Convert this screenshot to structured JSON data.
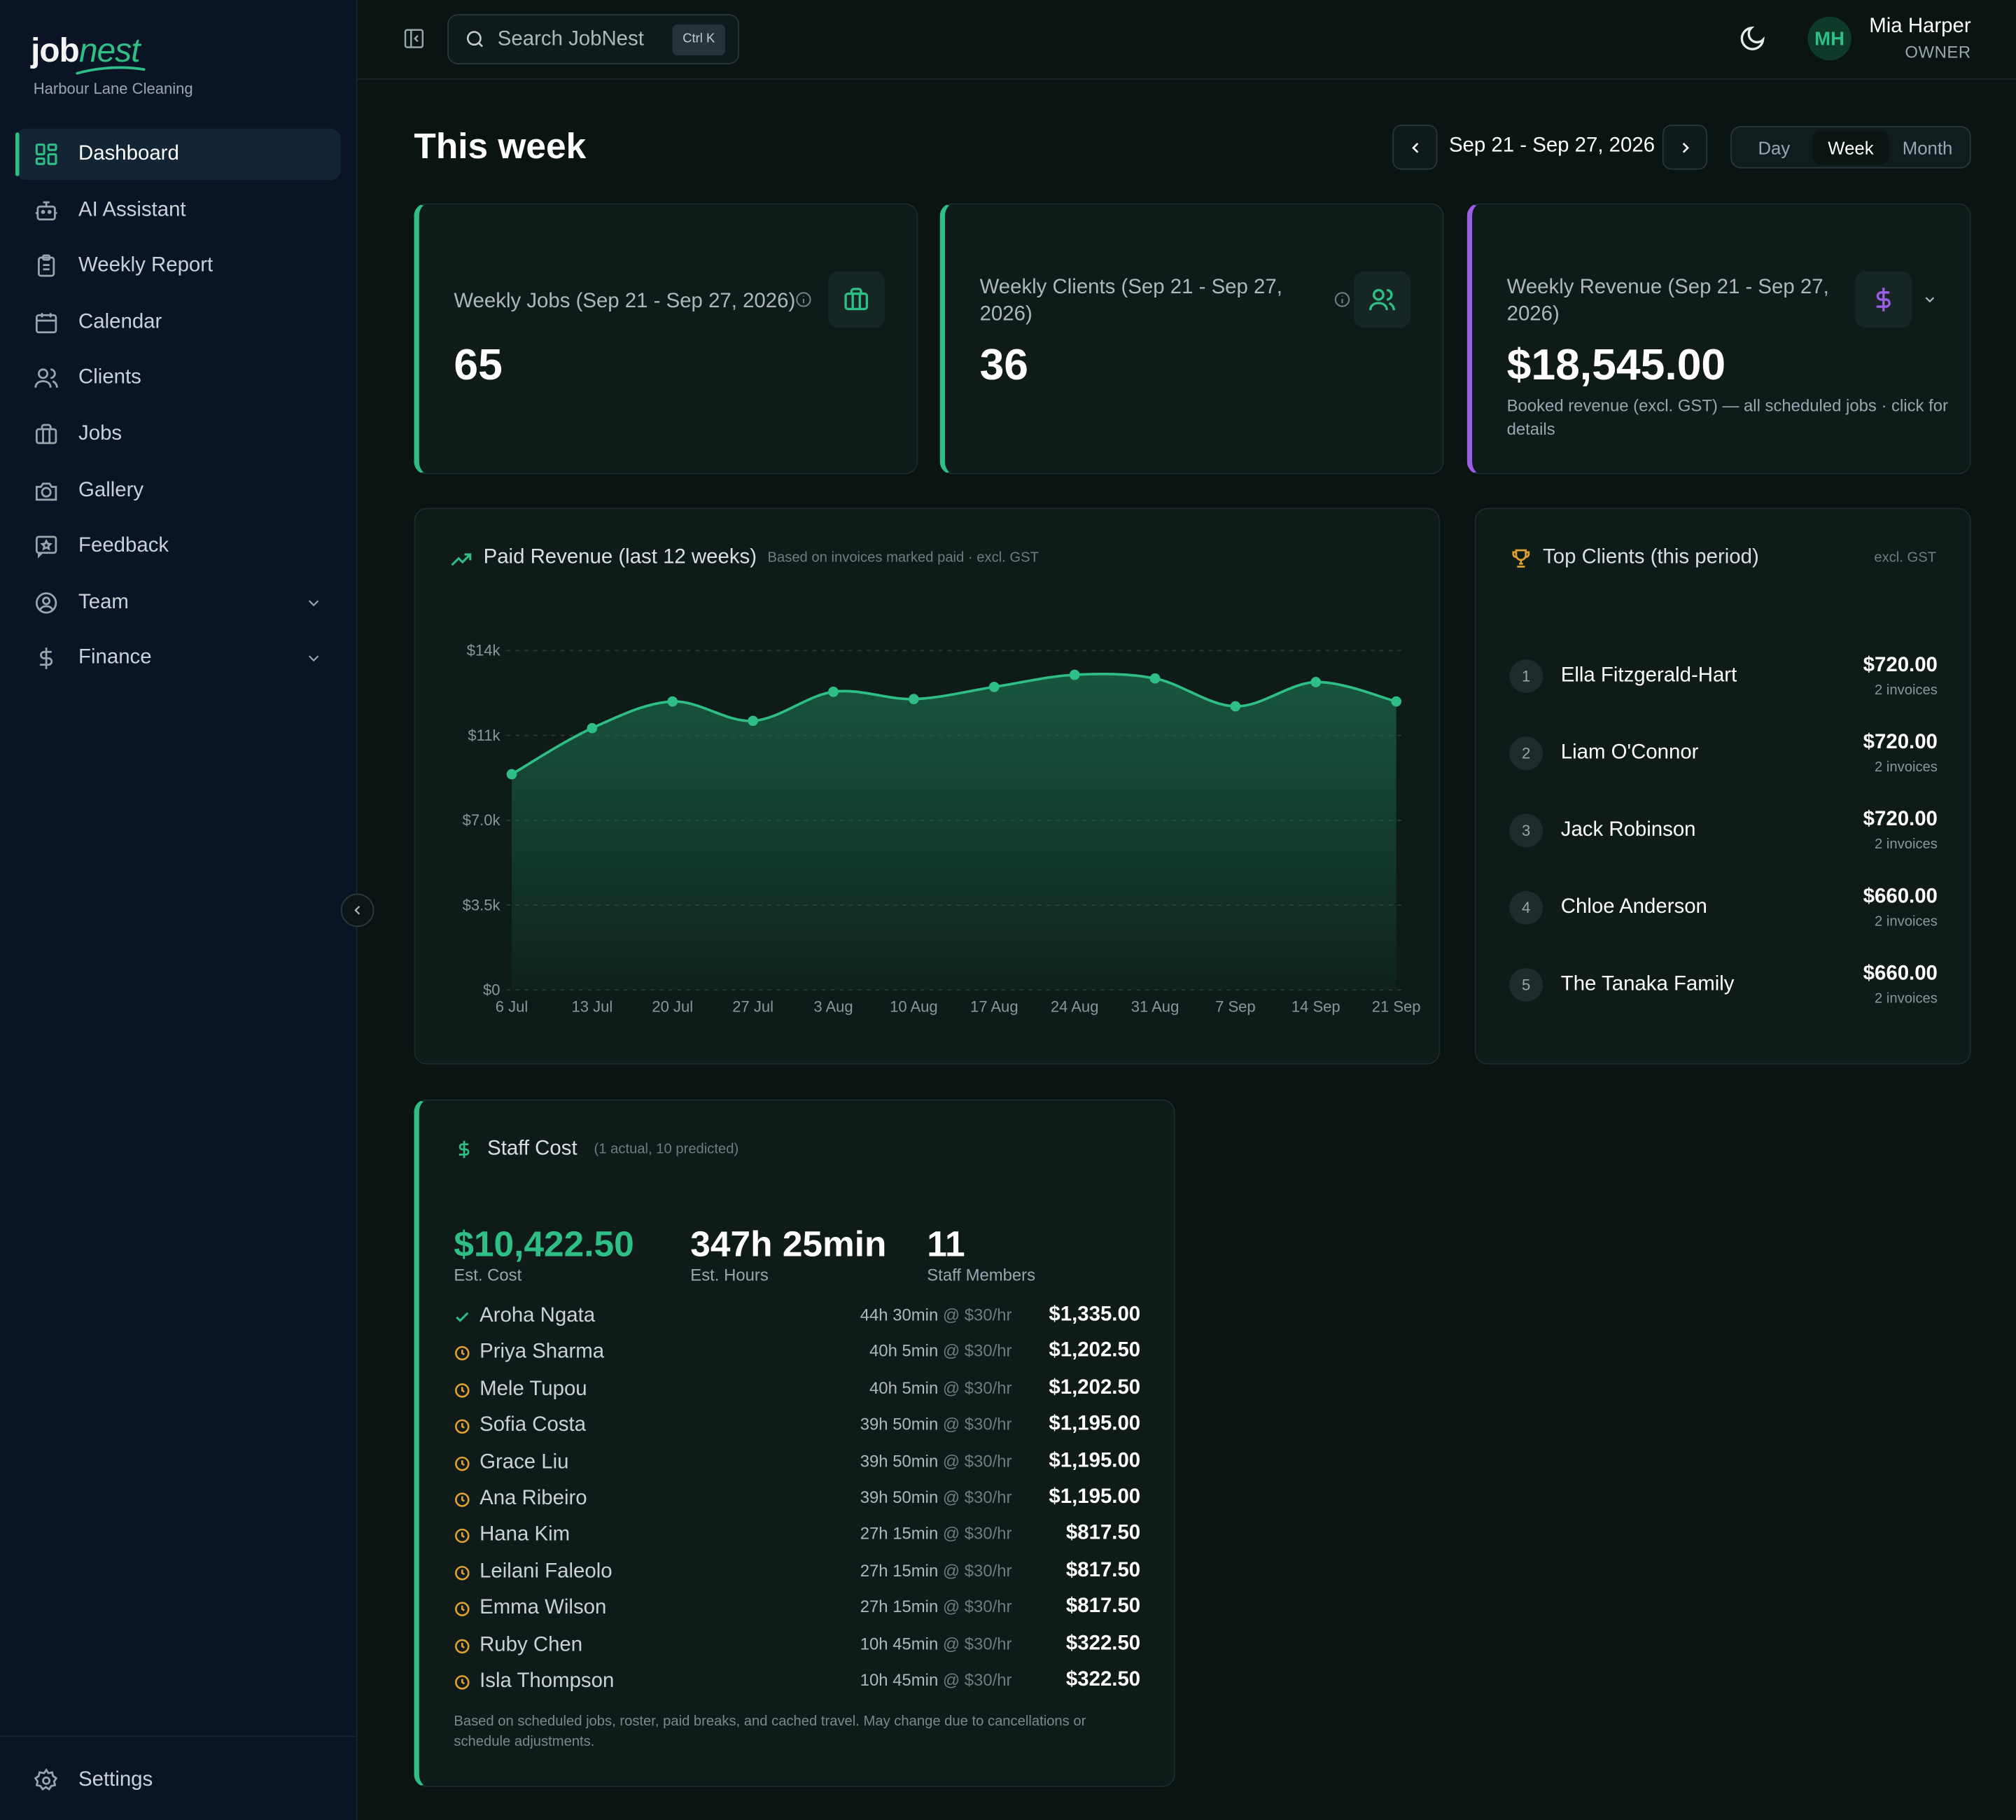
{
  "brand": {
    "name_a": "job",
    "name_b": "nest",
    "org": "Harbour Lane Cleaning"
  },
  "sidebar": {
    "items": [
      {
        "label": "Dashboard",
        "icon": "dashboard-icon",
        "active": true
      },
      {
        "label": "AI Assistant",
        "icon": "robot-icon"
      },
      {
        "label": "Weekly Report",
        "icon": "clipboard-icon"
      },
      {
        "label": "Calendar",
        "icon": "calendar-icon"
      },
      {
        "label": "Clients",
        "icon": "users-icon"
      },
      {
        "label": "Jobs",
        "icon": "briefcase-icon"
      },
      {
        "label": "Gallery",
        "icon": "camera-icon"
      },
      {
        "label": "Feedback",
        "icon": "feedback-icon"
      },
      {
        "label": "Team",
        "icon": "user-circle-icon",
        "expandable": true
      },
      {
        "label": "Finance",
        "icon": "dollar-icon",
        "expandable": true
      }
    ],
    "settings_label": "Settings"
  },
  "topbar": {
    "search_placeholder": "Search JobNest",
    "shortcut": "Ctrl K",
    "user": {
      "initials": "MH",
      "name": "Mia Harper",
      "role": "OWNER"
    }
  },
  "header": {
    "title": "This week",
    "date_range": "Sep 21 - Sep 27, 2026",
    "views": [
      "Day",
      "Week",
      "Month"
    ],
    "active_view": "Week"
  },
  "stats": {
    "jobs": {
      "title": "Weekly Jobs (Sep 21 - Sep 27, 2026)",
      "value": "65"
    },
    "clients": {
      "title": "Weekly Clients (Sep 21 - Sep 27, 2026)",
      "value": "36"
    },
    "revenue": {
      "title": "Weekly Revenue (Sep 21 - Sep 27, 2026)",
      "value": "$18,545.00",
      "sub": "Booked revenue (excl. GST) — all scheduled jobs · click for details"
    }
  },
  "revenue_chart": {
    "title": "Paid Revenue (last 12 weeks)",
    "note": "Based on invoices marked paid · excl. GST"
  },
  "chart_data": {
    "type": "area",
    "title": "Paid Revenue (last 12 weeks)",
    "categories": [
      "6 Jul",
      "13 Jul",
      "20 Jul",
      "27 Jul",
      "3 Aug",
      "10 Aug",
      "17 Aug",
      "24 Aug",
      "31 Aug",
      "7 Sep",
      "14 Sep",
      "21 Sep"
    ],
    "values": [
      8900,
      10800,
      11900,
      11100,
      12300,
      12000,
      12500,
      13000,
      12850,
      11700,
      12700,
      11900
    ],
    "y_ticks": [
      "$0",
      "$3.5k",
      "$7.0k",
      "$11k",
      "$14k"
    ],
    "y_tick_values": [
      0,
      3500,
      7000,
      10500,
      14000
    ],
    "ylim": [
      0,
      14000
    ],
    "grid": true,
    "color": "#2fbf86"
  },
  "top_clients": {
    "title": "Top Clients (this period)",
    "note": "excl. GST",
    "items": [
      {
        "rank": "1",
        "name": "Ella Fitzgerald-Hart",
        "amount": "$720.00",
        "invoices": "2 invoices"
      },
      {
        "rank": "2",
        "name": "Liam O'Connor",
        "amount": "$720.00",
        "invoices": "2 invoices"
      },
      {
        "rank": "3",
        "name": "Jack Robinson",
        "amount": "$720.00",
        "invoices": "2 invoices"
      },
      {
        "rank": "4",
        "name": "Chloe Anderson",
        "amount": "$660.00",
        "invoices": "2 invoices"
      },
      {
        "rank": "5",
        "name": "The Tanaka Family",
        "amount": "$660.00",
        "invoices": "2 invoices"
      }
    ]
  },
  "staff_cost": {
    "title": "Staff Cost",
    "subtitle": "(1 actual, 10 predicted)",
    "est_cost": "$10,422.50",
    "est_cost_label": "Est. Cost",
    "est_hours": "347h 25min",
    "est_hours_label": "Est. Hours",
    "members": "11",
    "members_label": "Staff Members",
    "rows": [
      {
        "name": "Aroha Ngata",
        "hours": "44h 30min",
        "rate": "@ $30/hr",
        "cost": "$1,335.00",
        "status": "actual"
      },
      {
        "name": "Priya Sharma",
        "hours": "40h 5min",
        "rate": "@ $30/hr",
        "cost": "$1,202.50",
        "status": "predicted"
      },
      {
        "name": "Mele Tupou",
        "hours": "40h 5min",
        "rate": "@ $30/hr",
        "cost": "$1,202.50",
        "status": "predicted"
      },
      {
        "name": "Sofia Costa",
        "hours": "39h 50min",
        "rate": "@ $30/hr",
        "cost": "$1,195.00",
        "status": "predicted"
      },
      {
        "name": "Grace Liu",
        "hours": "39h 50min",
        "rate": "@ $30/hr",
        "cost": "$1,195.00",
        "status": "predicted"
      },
      {
        "name": "Ana Ribeiro",
        "hours": "39h 50min",
        "rate": "@ $30/hr",
        "cost": "$1,195.00",
        "status": "predicted"
      },
      {
        "name": "Hana Kim",
        "hours": "27h 15min",
        "rate": "@ $30/hr",
        "cost": "$817.50",
        "status": "predicted"
      },
      {
        "name": "Leilani Faleolo",
        "hours": "27h 15min",
        "rate": "@ $30/hr",
        "cost": "$817.50",
        "status": "predicted"
      },
      {
        "name": "Emma Wilson",
        "hours": "27h 15min",
        "rate": "@ $30/hr",
        "cost": "$817.50",
        "status": "predicted"
      },
      {
        "name": "Ruby Chen",
        "hours": "10h 45min",
        "rate": "@ $30/hr",
        "cost": "$322.50",
        "status": "predicted"
      },
      {
        "name": "Isla Thompson",
        "hours": "10h 45min",
        "rate": "@ $30/hr",
        "cost": "$322.50",
        "status": "predicted"
      }
    ],
    "footnote": "Based on scheduled jobs, roster, paid breaks, and cached travel. May change due to cancellations or schedule adjustments."
  },
  "colors": {
    "accent": "#2fbf86",
    "revenue_accent": "#9b5de5",
    "trophy": "#e0a030",
    "predicted": "#e0a030"
  }
}
